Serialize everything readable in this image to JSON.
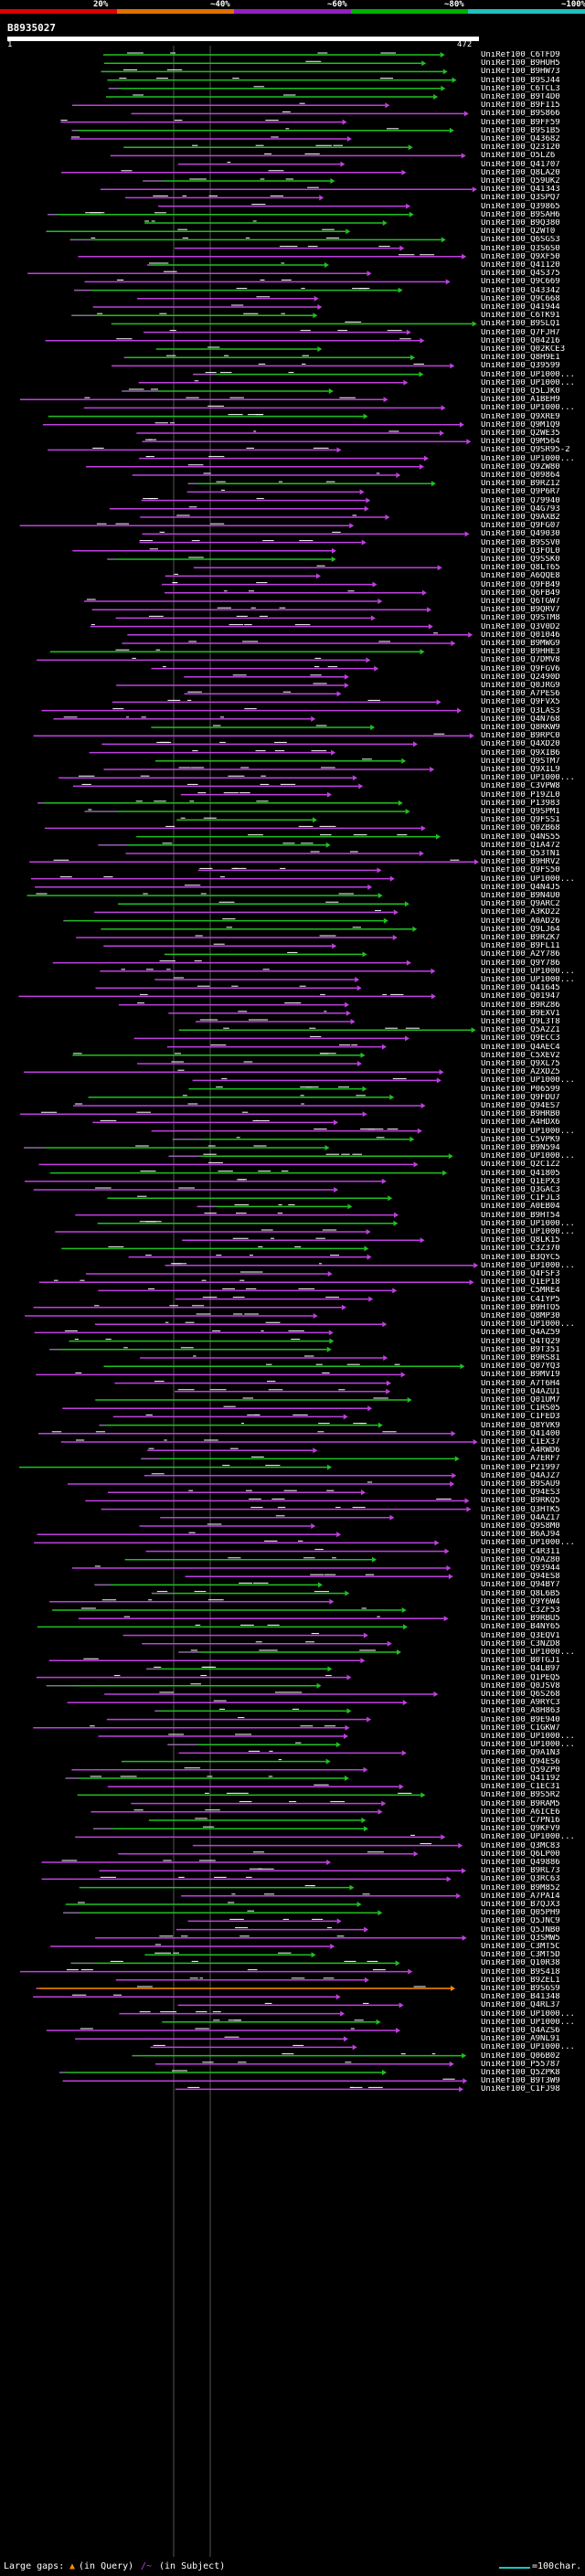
{
  "scale": {
    "labels": [
      "20%",
      "~40%",
      "~60%",
      "~80%",
      "~100%"
    ],
    "colors": [
      "#e00000",
      "#e07000",
      "#9020c0",
      "#00b000",
      "#20c0c0"
    ]
  },
  "query": {
    "id": "B8935027",
    "start": "1",
    "end": "472"
  },
  "colors": {
    "high": "#20c020",
    "mid": "#c040e0",
    "low": "#ff8c00",
    "label": "#ffffff"
  },
  "hits": [
    "UniRef100_C6TFD9",
    "UniRef100_B9HUH5",
    "UniRef100_B9HW73",
    "UniRef100_B9SJ44",
    "UniRef100_C6TCL3",
    "UniRef100_B9T4D0",
    "UniRef100_B9FI15",
    "UniRef100_B9S866",
    "UniRef100_B9FF59",
    "UniRef100_B9S1B5",
    "UniRef100_Q43682",
    "UniRef100_Q23120",
    "UniRef100_O5LZ6",
    "UniRef100_Q41707",
    "UniRef100_Q8LA20",
    "UniRef100_Q59UK2",
    "UniRef100_Q41343",
    "UniRef100_Q3SPQ7",
    "UniRef100_Q39865",
    "UniRef100_B9SAH6",
    "UniRef100_B9Q380",
    "UniRef100_Q2WT0",
    "UniRef100_Q6SGS3",
    "UniRef100_Q3S6S0",
    "UniRef100_Q9XF50",
    "UniRef100_Q41120",
    "UniRef100_Q4S375",
    "UniRef100_Q9C669",
    "UniRef100_Q43342",
    "UniRef100_Q9C668",
    "UniRef100_Q41944",
    "UniRef100_C6TK91",
    "UniRef100_B9SLQ1",
    "UniRef100_Q7FJH7",
    "UniRef100_Q04216",
    "UniRef100_Q02KCE3",
    "UniRef100_Q8H9E1",
    "UniRef100_Q39599",
    "UniRef100_UP1000...",
    "UniRef100_UP1000...",
    "UniRef100_Q5LJK0",
    "UniRef100_A1BEH9",
    "UniRef100_UP1000...",
    "UniRef100_Q9XRE9",
    "UniRef100_Q9M1Q9",
    "UniRef100_Q2WE35",
    "UniRef100_Q9M564",
    "UniRef100_Q9SR95-2",
    "UniRef100_UP1000...",
    "UniRef100_Q9ZW80",
    "UniRef100_Q09864",
    "UniRef100_B9RZ12",
    "UniRef100_Q9P6R7",
    "UniRef100_Q79940",
    "UniRef100_Q4G793",
    "UniRef100_Q9AXB2",
    "UniRef100_Q9FG07",
    "UniRef100_Q49030",
    "UniRef100_B9SSV0",
    "UniRef100_Q3FOL0",
    "UniRef100_Q9SSK0",
    "UniRef100_Q8LT65",
    "UniRef100_A6QQE8",
    "UniRef100_Q9FB49",
    "UniRef100_Q6FB49",
    "UniRef100_Q6TGW7",
    "UniRef100_B9QRV7",
    "UniRef100_Q9STM8",
    "UniRef100_Q3V0D2",
    "UniRef100_Q01046",
    "UniRef100_B9MWG9",
    "UniRef100_B9HHE3",
    "UniRef100_Q7DMV8",
    "UniRef100_Q9FGV6",
    "UniRef100_Q2490D",
    "UniRef100_Q0JRG9",
    "UniRef100_A7PES6",
    "UniRef100_Q9FVX5",
    "UniRef100_Q3LAS3",
    "UniRef100_Q4N768",
    "UniRef100_Q8RKW9",
    "UniRef100_B9RPC0",
    "UniRef100_Q4XD20",
    "UniRef100_Q9XIB6",
    "UniRef100_Q9STM7",
    "UniRef100_Q9XIL9",
    "UniRef100_UP1000...",
    "UniRef100_C3VPW8",
    "UniRef100_P19ZL0",
    "UniRef100_P13983",
    "UniRef100_Q9SPM1",
    "UniRef100_Q9FSS1",
    "UniRef100_Q0ZB68",
    "UniRef100_Q4NS55",
    "UniRef100_Q1A472",
    "UniRef100_Q53TN1",
    "UniRef100_B9HRV2",
    "UniRef100_Q9FS50",
    "UniRef100_UP1000...",
    "UniRef100_Q4N4J5",
    "UniRef100_B9N4U0",
    "UniRef100_Q9ARC2",
    "UniRef100_A3KD22",
    "UniRef100_A0AD26",
    "UniRef100_Q9LJ64",
    "UniRef100_B9RZK7",
    "UniRef100_B9FL11",
    "UniRef100_A2Y786",
    "UniRef100_Q9Y786",
    "UniRef100_UP1000...",
    "UniRef100_UP1000...",
    "UniRef100_Q41645",
    "UniRef100_Q01947",
    "UniRef100_B9RZ86",
    "UniRef100_B9EXV1",
    "UniRef100_Q9L3T8",
    "UniRef100_Q5A2Z1",
    "UniRef100_Q9ECC3",
    "UniRef100_Q4AEC4",
    "UniRef100_C5XEV2",
    "UniRef100_Q9XL75",
    "UniRef100_A2XDZ5",
    "UniRef100_UP1000...",
    "UniRef100_P06599",
    "UniRef100_Q9FDU7",
    "UniRef100_Q94ES7",
    "UniRef100_B9HRB0",
    "UniRef100_A4HDX6",
    "UniRef100_UP1000...",
    "UniRef100_C5VPK9",
    "UniRef100_B9N594",
    "UniRef100_UP1000...",
    "UniRef100_Q2C1Z2",
    "UniRef100_Q41805",
    "UniRef100_Q1EPX3",
    "UniRef100_Q3GAC3",
    "UniRef100_C1FJL3",
    "UniRef100_A0EB04",
    "UniRef100_B9HT54",
    "UniRef100_UP1000...",
    "UniRef100_UP1000...",
    "UniRef100_Q8LK15",
    "UniRef100_C3Z370",
    "UniRef100_B3QYC5",
    "UniRef100_UP1000...",
    "UniRef100_Q4FSF3",
    "UniRef100_Q1EP18",
    "UniRef100_C5MRE4",
    "UniRef100_C4IYP5",
    "UniRef100_B9HTO5",
    "UniRef100_Q8MP30",
    "UniRef100_UP1000...",
    "UniRef100_Q4AZ59",
    "UniRef100_Q4TQ29",
    "UniRef100_B9T351",
    "UniRef100_B9RS81",
    "UniRef100_Q07YQ3",
    "UniRef100_B9MVI9",
    "UniRef100_A7T6H4",
    "UniRef100_Q4AZU1",
    "UniRef100_Q01UM7",
    "UniRef100_C1RS05",
    "UniRef100_C1FED3",
    "UniRef100_Q8YVK9",
    "UniRef100_Q41400",
    "UniRef100_C1EX37",
    "UniRef100_A4RWD6",
    "UniRef100_A7ERF7",
    "UniRef100_P21997",
    "UniRef100_Q4AJZ7",
    "UniRef100_B9SAU9",
    "UniRef100_Q94ES3",
    "UniRef100_B9RKQ5",
    "UniRef100_Q3HTK5",
    "UniRef100_Q4AZ17",
    "UniRef100_Q9S8M0",
    "UniRef100_B6AJ94",
    "UniRef100_UP1000...",
    "UniRef100_C4R311",
    "UniRef100_Q9AZ80",
    "UniRef100_Q93944",
    "UniRef100_Q94ES8",
    "UniRef100_Q94BY7",
    "UniRef100_Q8L6B5",
    "UniRef100_Q9Y6W4",
    "UniRef100_C3ZF53",
    "UniRef100_B9RBU5",
    "UniRef100_B4NY65",
    "UniRef100_Q3EQV1",
    "UniRef100_C3NZD8",
    "UniRef100_UP1000...",
    "UniRef100_B0TGJ1",
    "UniRef100_Q4LB97",
    "UniRef100_Q1PEQ5",
    "UniRef100_Q0JSV8",
    "UniRef100_Q6S268",
    "UniRef100_A9RYC3",
    "UniRef100_A8H863",
    "UniRef100_B9E940",
    "UniRef100_C1GKW7",
    "UniRef100_UP1000...",
    "UniRef100_UP1000...",
    "UniRef100_Q9A1N3",
    "UniRef100_Q94ES6",
    "UniRef100_Q59ZP0",
    "UniRef100_Q41192",
    "UniRef100_C1EC31",
    "UniRef100_B9S5R2",
    "UniRef100_B9RAM5",
    "UniRef100_A6ICE6",
    "UniRef100_C7PN16",
    "UniRef100_Q9KFV9",
    "UniRef100_UP1000...",
    "UniRef100_Q3MC83",
    "UniRef100_Q6LP00",
    "UniRef100_Q49886",
    "UniRef100_B9RL73",
    "UniRef100_Q3RC63",
    "UniRef100_B9M852",
    "UniRef100_A7PAI4",
    "UniRef100_B7QJX3",
    "UniRef100_Q05PH9",
    "UniRef100_Q5JNC9",
    "UniRef100_Q5JNB0",
    "UniRef100_Q3SMW5",
    "UniRef100_C3MT5C",
    "UniRef100_C3MT5D",
    "UniRef100_Q10R38",
    "UniRef100_B9S418",
    "UniRef100_B9ZEL1",
    "UniRef100_B9S6S9",
    "UniRef100_B41348",
    "UniRef100_Q4RL37",
    "UniRef100_UP1000...",
    "UniRef100_UP1000...",
    "UniRef100_Q4AZS6",
    "UniRef100_A9NL91",
    "UniRef100_UP1000...",
    "UniRef100_Q06B02",
    "UniRef100_P55787",
    "UniRef100_Q5ZPK8",
    "UniRef100_B9T3W9",
    "UniRef100_C1FJ98"
  ],
  "footer": {
    "large_gaps": "Large gaps:",
    "query_gap": "(in Query)",
    "subject_gap": "(in Subject)",
    "legend": "=100char."
  }
}
